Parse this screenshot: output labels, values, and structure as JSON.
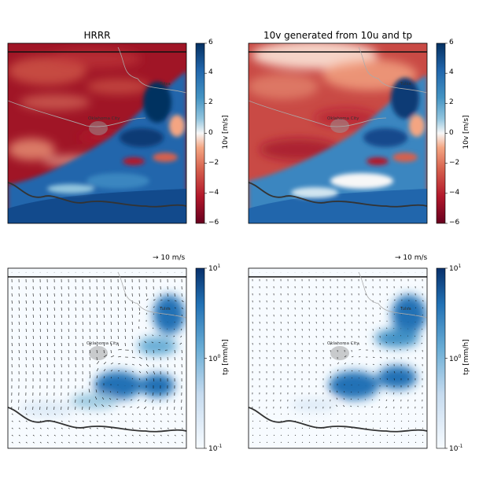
{
  "chart_data": [
    {
      "type": "heatmap",
      "title": "HRRR",
      "colorbar_label": "10v [m/s]",
      "colorbar_ticks": [
        6,
        4,
        2,
        0,
        -2,
        -4,
        -6
      ],
      "colorbar_range": [
        -6,
        6
      ],
      "colormap": "RdBu",
      "city_labels": [
        "Tulsa",
        "Oklahoma City"
      ]
    },
    {
      "type": "heatmap",
      "title": "10v generated from 10u and tp",
      "colorbar_label": "10v [m/s]",
      "colorbar_ticks": [
        6,
        4,
        2,
        0,
        -2,
        -4,
        -6
      ],
      "colorbar_range": [
        -6,
        6
      ],
      "colormap": "RdBu",
      "city_labels": [
        "Tulsa",
        "Oklahoma City"
      ]
    },
    {
      "type": "heatmap",
      "title": "",
      "quiver_key": "→ 10 m/s",
      "colorbar_label": "tp [mm/h]",
      "colorbar_ticks": [
        "10^1",
        "10^0",
        "10^-1"
      ],
      "colorbar_range": [
        0.1,
        10
      ],
      "colorbar_scale": "log",
      "colormap": "Blues",
      "city_labels": [
        "Tulsa",
        "Oklahoma City"
      ]
    },
    {
      "type": "heatmap",
      "title": "",
      "quiver_key": "→ 10 m/s",
      "colorbar_label": "tp [mm/h]",
      "colorbar_ticks": [
        "10^1",
        "10^0",
        "10^-1"
      ],
      "colorbar_range": [
        0.1,
        10
      ],
      "colorbar_scale": "log",
      "colormap": "Blues",
      "city_labels": [
        "Tulsa",
        "Oklahoma City"
      ]
    }
  ]
}
